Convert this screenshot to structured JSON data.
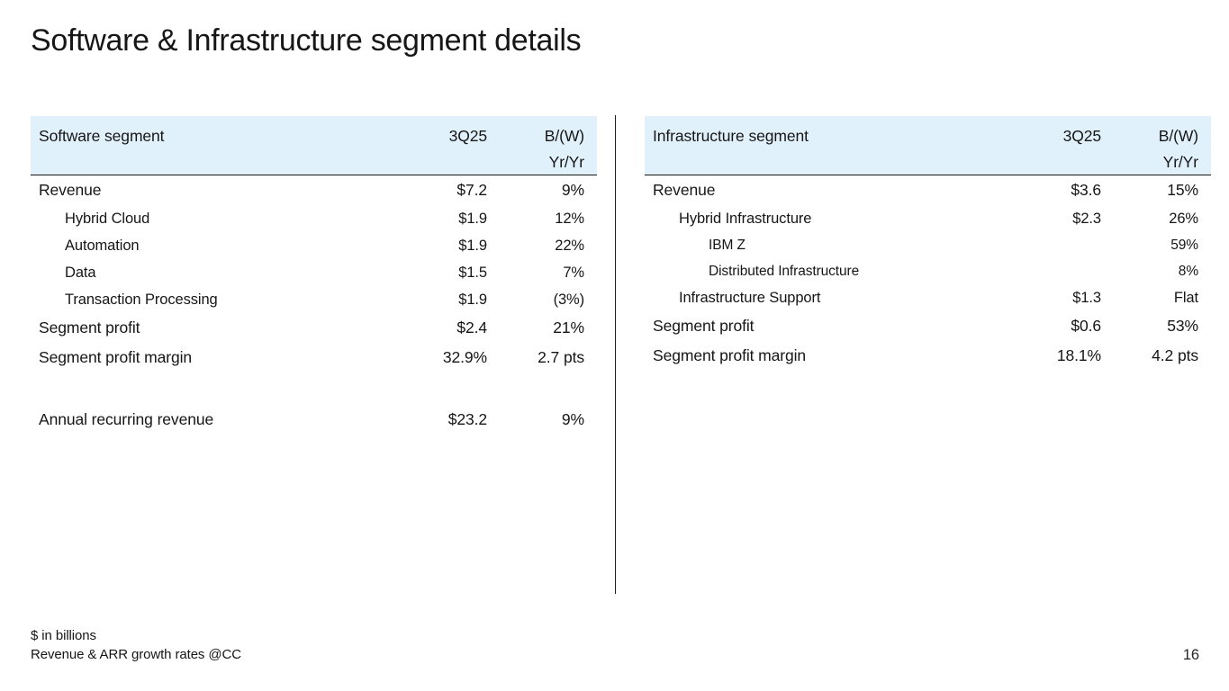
{
  "slide": {
    "title": "Software & Infrastructure segment details",
    "page_number": "16",
    "footnote_line1": "$ in billions",
    "footnote_line2": "Revenue & ARR growth rates @CC"
  },
  "colors": {
    "header_bg": "#e1f1fb",
    "text": "#161616",
    "rule": "#161616"
  },
  "tables": [
    {
      "name": "software-segment",
      "header": {
        "label": "Software segment",
        "period": "3Q25",
        "change_line1": "B/(W)",
        "change_line2": "Yr/Yr"
      },
      "rows": [
        {
          "label": "Revenue",
          "level": 0,
          "value": "$7.2",
          "change": "9%"
        },
        {
          "label": "Hybrid Cloud",
          "level": 1,
          "value": "$1.9",
          "change": "12%"
        },
        {
          "label": "Automation",
          "level": 1,
          "value": "$1.9",
          "change": "22%"
        },
        {
          "label": "Data",
          "level": 1,
          "value": "$1.5",
          "change": "7%"
        },
        {
          "label": "Transaction Processing",
          "level": 1,
          "value": "$1.9",
          "change": "(3%)"
        },
        {
          "label": "Segment profit",
          "level": 0,
          "value": "$2.4",
          "change": "21%"
        },
        {
          "label": "Segment profit margin",
          "level": 0,
          "value": "32.9%",
          "change": "2.7 pts"
        },
        {
          "label": "Annual recurring revenue",
          "level": 0,
          "value": "$23.2",
          "change": "9%"
        }
      ]
    },
    {
      "name": "infrastructure-segment",
      "header": {
        "label": "Infrastructure segment",
        "period": "3Q25",
        "change_line1": "B/(W)",
        "change_line2": "Yr/Yr"
      },
      "rows": [
        {
          "label": "Revenue",
          "level": 0,
          "value": "$3.6",
          "change": "15%"
        },
        {
          "label": "Hybrid Infrastructure",
          "level": 1,
          "value": "$2.3",
          "change": "26%"
        },
        {
          "label": "IBM Z",
          "level": 2,
          "value": "",
          "change": "59%"
        },
        {
          "label": "Distributed Infrastructure",
          "level": 2,
          "value": "",
          "change": "8%"
        },
        {
          "label": "Infrastructure Support",
          "level": 1,
          "value": "$1.3",
          "change": "Flat"
        },
        {
          "label": "Segment profit",
          "level": 0,
          "value": "$0.6",
          "change": "53%"
        },
        {
          "label": "Segment profit margin",
          "level": 0,
          "value": "18.1%",
          "change": "4.2 pts"
        }
      ]
    }
  ]
}
